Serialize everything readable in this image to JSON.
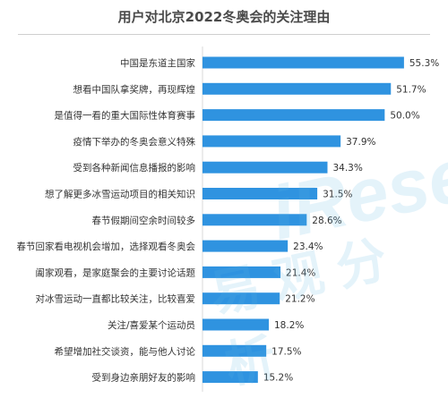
{
  "chart_data": {
    "type": "bar",
    "orientation": "horizontal",
    "title": "用户对北京2022冬奥会的关注理由",
    "categories": [
      "中国是东道主国家",
      "想看中国队拿奖牌，再现辉煌",
      "是值得一看的重大国际性体育赛事",
      "疫情下举办的冬奥会意义特殊",
      "受到各种新闻信息播报的影响",
      "想了解更多冰雪运动项目的相关知识",
      "春节假期间空余时间较多",
      "春节回家看电视机会增加，选择观看冬奥会",
      "阖家观看，是家庭聚会的主要讨论话题",
      "对冰雪运动一直都比较关注，比较喜爱",
      "关注/喜爱某个运动员",
      "希望增加社交谈资，能与他人讨论",
      "受到身边亲朋好友的影响"
    ],
    "values": [
      55.3,
      51.7,
      50.0,
      37.9,
      34.3,
      31.5,
      28.6,
      23.4,
      21.4,
      21.2,
      18.2,
      17.5,
      15.2
    ],
    "value_labels": [
      "55.3%",
      "51.7%",
      "50.0%",
      "37.9%",
      "34.3%",
      "31.5%",
      "28.6%",
      "23.4%",
      "21.4%",
      "21.2%",
      "18.2%",
      "17.5%",
      "15.2%"
    ],
    "xlim": [
      0,
      60
    ],
    "grid": false,
    "bar_color": "#2f93e0"
  },
  "watermark": {
    "logo": "iResearch",
    "text": "易观分析"
  }
}
